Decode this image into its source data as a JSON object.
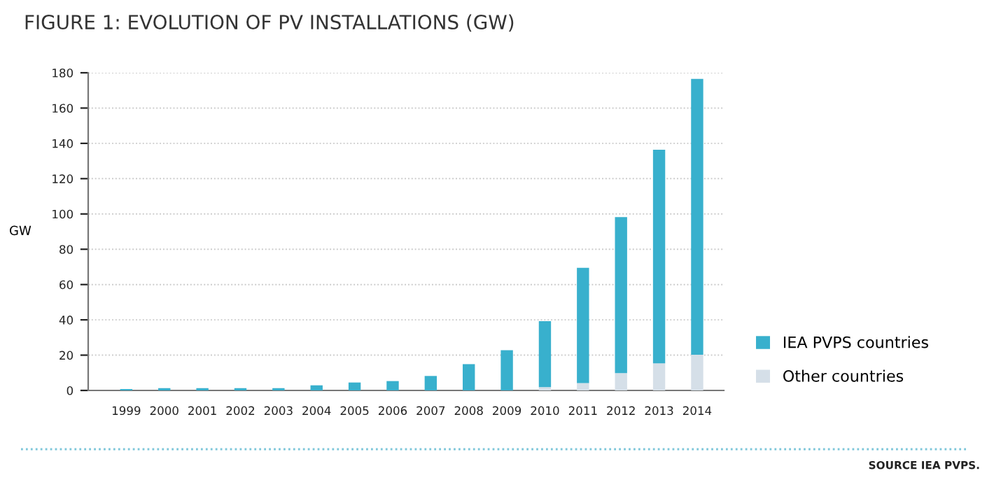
{
  "chart_data": {
    "type": "bar",
    "stacked": true,
    "title": "FIGURE 1: EVOLUTION OF PV INSTALLATIONS (GW)",
    "ylabel": "GW",
    "categories": [
      "1999",
      "2000",
      "2001",
      "2002",
      "2003",
      "2004",
      "2005",
      "2006",
      "2007",
      "2008",
      "2009",
      "2010",
      "2011",
      "2012",
      "2013",
      "2014"
    ],
    "series": [
      {
        "name": "Other countries",
        "color": "#d5dfe8",
        "values": [
          null,
          null,
          null,
          null,
          null,
          null,
          null,
          null,
          null,
          null,
          null,
          1.9,
          4.2,
          9.8,
          15.4,
          20.2
        ]
      },
      {
        "name": "IEA PVPS countries",
        "color": "#38b0cd",
        "values": [
          0.8,
          1.3,
          1.3,
          1.3,
          1.3,
          2.9,
          4.5,
          5.3,
          8.2,
          14.9,
          22.8,
          37.4,
          65.3,
          88.4,
          121.0,
          156.3
        ]
      }
    ],
    "ylim": [
      0,
      180
    ],
    "yticks": [
      0,
      20,
      40,
      60,
      80,
      100,
      120,
      140,
      160,
      180
    ],
    "grid": "y",
    "legend": "bottom right",
    "annotations": [
      "SOURCE IEA PVPS."
    ]
  }
}
